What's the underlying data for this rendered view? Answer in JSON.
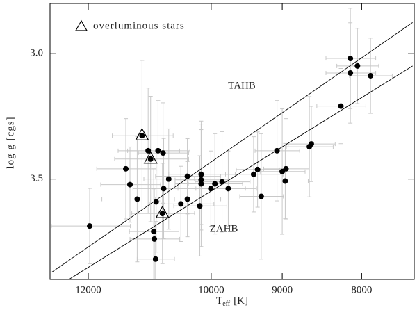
{
  "chart_data": {
    "type": "scatter",
    "xlabel": {
      "symbol": "T",
      "subscript": "eff",
      "unit": "[K]"
    },
    "ylabel": "log g [cgs]",
    "xscale": "log",
    "xlim": [
      12700,
      7400
    ],
    "ylim": [
      3.9,
      2.8
    ],
    "xticks": [
      12000,
      10000,
      9000,
      8000
    ],
    "yticks": [
      {
        "value": 3.0,
        "label": "3.0"
      },
      {
        "value": 3.5,
        "label": "3.5"
      }
    ],
    "color": "#000000",
    "errorbar_color": "#c8c8c8",
    "series": [
      {
        "x": [
          11975,
          11350,
          11280,
          11160,
          10980,
          10820,
          10740,
          10890,
          10880,
          10860,
          10850,
          10730,
          10650,
          10360,
          10460,
          10360,
          10150,
          10150,
          10150,
          10170,
          10005,
          9945,
          9840,
          9750,
          9390,
          9335,
          9285,
          9070,
          9000,
          8950,
          8960,
          8645,
          8620,
          8250,
          8135,
          8135,
          8050,
          7895
        ],
        "values": [
          3.687,
          3.459,
          3.522,
          3.58,
          3.387,
          3.387,
          3.396,
          3.709,
          3.739,
          3.819,
          3.591,
          3.538,
          3.5,
          3.489,
          3.599,
          3.58,
          3.481,
          3.503,
          3.519,
          3.607,
          3.538,
          3.519,
          3.511,
          3.538,
          3.481,
          3.462,
          3.569,
          3.387,
          3.47,
          3.459,
          3.508,
          3.371,
          3.36,
          3.209,
          3.019,
          3.077,
          3.049,
          3.088
        ],
        "xerr": [
          700,
          500,
          500,
          600,
          500,
          500,
          400,
          400,
          400,
          300,
          500,
          500,
          400,
          500,
          500,
          500,
          500,
          400,
          400,
          400,
          500,
          400,
          400,
          400,
          400,
          300,
          300,
          300,
          300,
          300,
          300,
          300,
          300,
          300,
          300,
          300,
          250,
          250
        ],
        "yerr": [
          0.15,
          0.2,
          0.15,
          0.25,
          0.25,
          0.2,
          0.2,
          0.25,
          0.2,
          0.15,
          0.2,
          0.2,
          0.2,
          0.15,
          0.15,
          0.15,
          0.2,
          0.2,
          0.25,
          0.2,
          0.15,
          0.2,
          0.2,
          0.15,
          0.15,
          0.15,
          0.25,
          0.2,
          0.25,
          0.2,
          0.15,
          0.2,
          0.15,
          0.15,
          0.2,
          0.2,
          0.15,
          0.15
        ]
      },
      {
        "name": "overluminous stars",
        "marker": "triangle",
        "x": [
          11080,
          10940,
          10750
        ],
        "values": [
          3.327,
          3.42,
          3.637
        ],
        "xerr": [
          500,
          600,
          500
        ],
        "yerr": [
          0.3,
          0.25,
          0.2
        ]
      }
    ],
    "lines": [
      {
        "name": "TAHB",
        "x": [
          12665,
          7418
        ],
        "y": [
          3.871,
          2.876
        ]
      },
      {
        "name": "ZAHB",
        "x": [
          12335,
          7418
        ],
        "y": [
          3.898,
          3.049
        ]
      }
    ]
  }
}
